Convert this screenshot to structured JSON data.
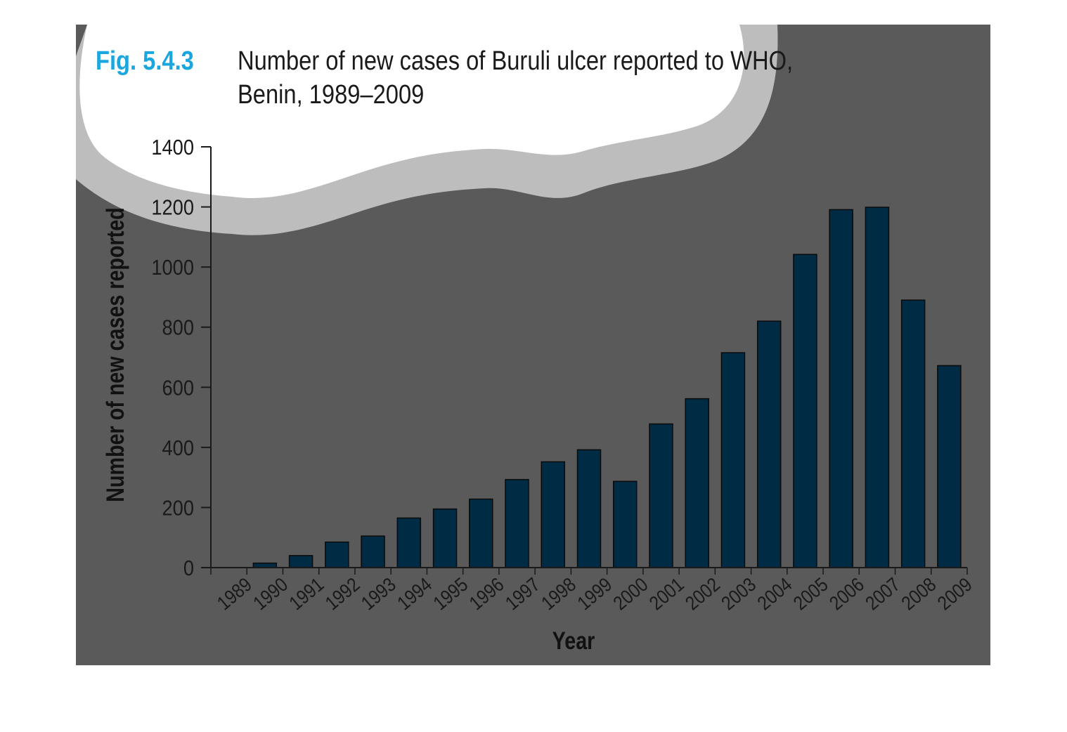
{
  "figure": {
    "label": "Fig. 5.4.3",
    "title_line1": "Number of new cases of Buruli ulcer reported to WHO,",
    "title_line2": "Benin, 1989–2009"
  },
  "colors": {
    "background_panel": "#5a5a5a",
    "cloud_shadow": "#bdbdbd",
    "cloud": "#ffffff",
    "bar": "#002b45",
    "label_accent": "#1aa7e0",
    "axis": "#1a1a1a"
  },
  "chart_data": {
    "type": "bar",
    "xlabel": "Year",
    "ylabel": "Number of new cases reported",
    "ylim": [
      0,
      1400
    ],
    "yticks": [
      0,
      200,
      400,
      600,
      800,
      1000,
      1200,
      1400
    ],
    "grid": false,
    "categories": [
      "1989",
      "1990",
      "1991",
      "1992",
      "1993",
      "1994",
      "1995",
      "1996",
      "1997",
      "1998",
      "1999",
      "2000",
      "2001",
      "2002",
      "2003",
      "2004",
      "2005",
      "2006",
      "2007",
      "2008",
      "2009"
    ],
    "values": [
      0,
      15,
      40,
      85,
      105,
      165,
      195,
      228,
      293,
      352,
      392,
      287,
      478,
      562,
      715,
      820,
      1042,
      1191,
      1199,
      890,
      672
    ]
  }
}
